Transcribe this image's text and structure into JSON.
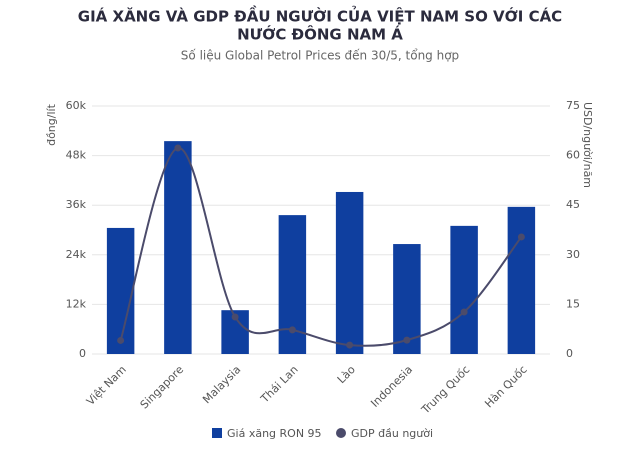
{
  "chart_data": {
    "type": "bar",
    "title": [
      "GIÁ XĂNG VÀ GDP ĐẦU NGƯỜI CỦA VIỆT NAM SO VỚI CÁC",
      "NƯỚC ĐÔNG NAM Á"
    ],
    "subtitle": "Số liệu Global Petrol Prices đến 30/5, tổng hợp",
    "y_label": "đồng/lít",
    "y2_label": "USD/người/năm",
    "categories": [
      "Việt Nam",
      "Singapore",
      "Malaysia",
      "Thái Lan",
      "Lào",
      "Indonesia",
      "Trung Quốc",
      "Hàn Quốc"
    ],
    "series": [
      {
        "name": "Giá xăng RON 95",
        "type": "bar",
        "color": "#0f3f9f",
        "values": [
          30500,
          51500,
          10600,
          33600,
          39200,
          26600,
          31000,
          35600
        ]
      },
      {
        "name": "GDP đầu người",
        "type": "line",
        "axis": "y2",
        "color": "#4b4b6b",
        "values": [
          4.1,
          62.3,
          11.2,
          7.3,
          2.7,
          4.2,
          12.7,
          35.4
        ]
      }
    ],
    "ylim": [
      0,
      60000
    ],
    "yticks": [
      0,
      {
        "value": 12000,
        "label": "12k"
      },
      {
        "value": 24000,
        "label": "24k"
      },
      {
        "value": 36000,
        "label": "36k"
      },
      {
        "value": 48000,
        "label": "48k"
      },
      {
        "value": 60000,
        "label": "60k"
      }
    ],
    "y2lim": [
      0,
      75
    ],
    "y2ticks": [
      0,
      15,
      30,
      45,
      60,
      75
    ],
    "grid": true,
    "legend": "bottom"
  }
}
